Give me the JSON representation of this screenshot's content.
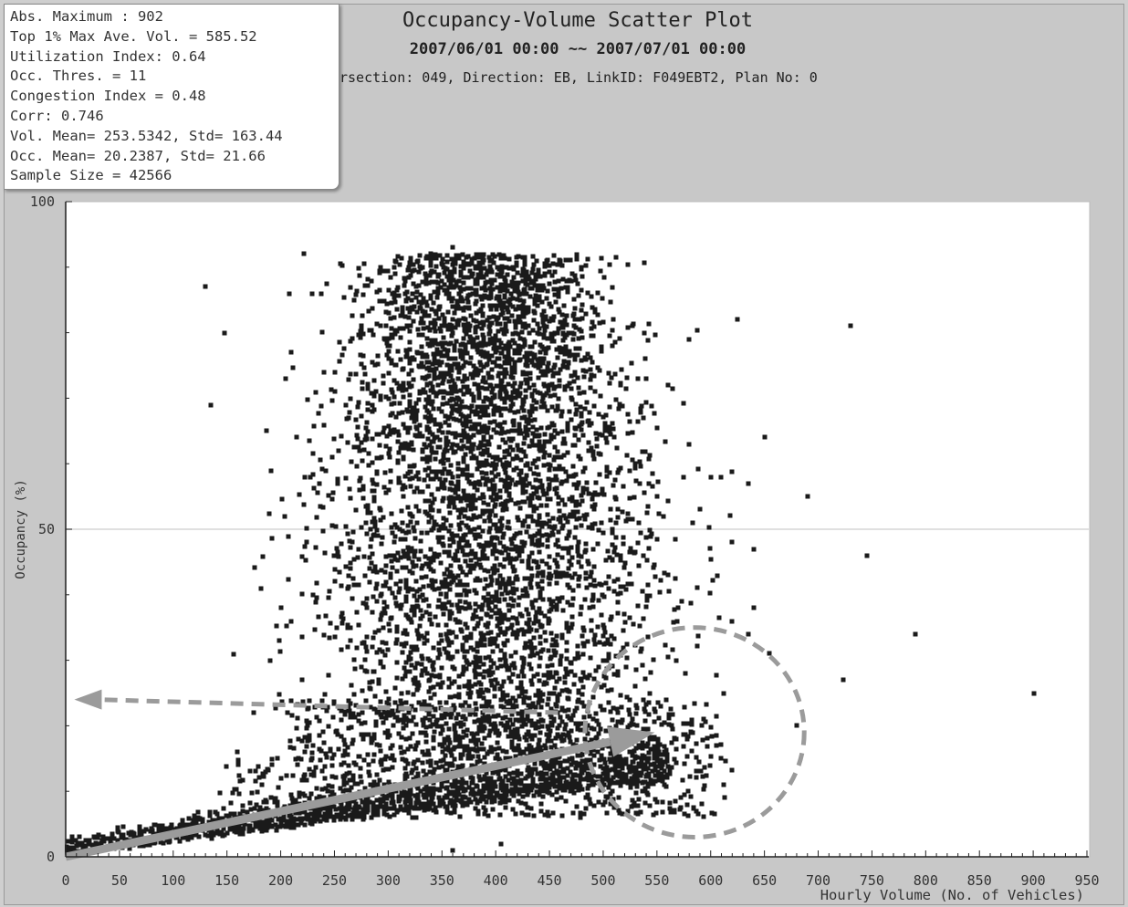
{
  "stats": {
    "lines": [
      "Abs. Maximum : 902",
      "Top 1% Max Ave. Vol. = 585.52",
      "Utilization Index: 0.64",
      "Occ. Thres. = 11",
      "Congestion Index = 0.48",
      "Corr: 0.746",
      "Vol. Mean= 253.5342, Std= 163.44",
      "Occ. Mean= 20.2387, Std= 21.66",
      "Sample Size = 42566"
    ]
  },
  "header": {
    "meta": "rsection: 049, Direction: EB, LinkID: F049EBT2, Plan No: 0"
  },
  "chart_data": {
    "type": "scatter",
    "title": "Occupancy-Volume Scatter Plot",
    "subtitle": "2007/06/01 00:00 ~~ 2007/07/01 00:00",
    "xlabel": "Hourly Volume (No. of Vehicles)",
    "ylabel": "Occupancy (%)",
    "xlim": [
      0,
      950
    ],
    "ylim": [
      0,
      100
    ],
    "x_ticks": [
      0,
      50,
      100,
      150,
      200,
      250,
      300,
      350,
      400,
      450,
      500,
      550,
      600,
      650,
      700,
      750,
      800,
      850,
      900,
      950
    ],
    "y_ticks": [
      0,
      50,
      100
    ],
    "grid": "horizontal line at 50",
    "marker_color": "#1a1a1a",
    "annotation_color": "#9b9b9b",
    "sample_points": [
      [
        130,
        87
      ],
      [
        148,
        80
      ],
      [
        135,
        69
      ],
      [
        222,
        92
      ],
      [
        208,
        86
      ],
      [
        238,
        86
      ],
      [
        268,
        85
      ],
      [
        290,
        89
      ],
      [
        332,
        90
      ],
      [
        360,
        93
      ],
      [
        340,
        92
      ],
      [
        395,
        91
      ],
      [
        480,
        90
      ],
      [
        625,
        82
      ],
      [
        730,
        81
      ],
      [
        690,
        55
      ],
      [
        745,
        46
      ],
      [
        790,
        34
      ],
      [
        723,
        27
      ],
      [
        680,
        20
      ],
      [
        901,
        25
      ],
      [
        650,
        64
      ],
      [
        635,
        57
      ],
      [
        600,
        58
      ],
      [
        620,
        36
      ],
      [
        635,
        34
      ],
      [
        640,
        38
      ],
      [
        612,
        25
      ],
      [
        612,
        11
      ],
      [
        580,
        63
      ],
      [
        600,
        40
      ],
      [
        620,
        48
      ],
      [
        640,
        47
      ],
      [
        560,
        43
      ],
      [
        570,
        38
      ],
      [
        530,
        60
      ],
      [
        510,
        42
      ],
      [
        200,
        38
      ],
      [
        210,
        36
      ],
      [
        175,
        22
      ],
      [
        160,
        16
      ],
      [
        190,
        30
      ],
      [
        220,
        27
      ],
      [
        230,
        40
      ],
      [
        250,
        46
      ],
      [
        260,
        35
      ],
      [
        300,
        70
      ],
      [
        320,
        72
      ],
      [
        305,
        65
      ],
      [
        350,
        68
      ],
      [
        430,
        75
      ],
      [
        470,
        70
      ],
      [
        540,
        73
      ],
      [
        560,
        72
      ],
      [
        580,
        79
      ],
      [
        575,
        58
      ],
      [
        590,
        53
      ],
      [
        405,
        2
      ],
      [
        360,
        1
      ],
      [
        240,
        74
      ],
      [
        210,
        77
      ],
      [
        205,
        73
      ],
      [
        215,
        64
      ]
    ],
    "annotations": [
      {
        "type": "arrow",
        "from": [
          0,
          0
        ],
        "to": [
          548,
          19
        ],
        "style": "solid"
      },
      {
        "type": "arrow",
        "from": [
          458,
          22
        ],
        "to": [
          8,
          24
        ],
        "style": "dashed"
      },
      {
        "type": "ellipse",
        "center": [
          585,
          19
        ],
        "radius": [
          102,
          16
        ],
        "style": "dashed"
      }
    ]
  }
}
